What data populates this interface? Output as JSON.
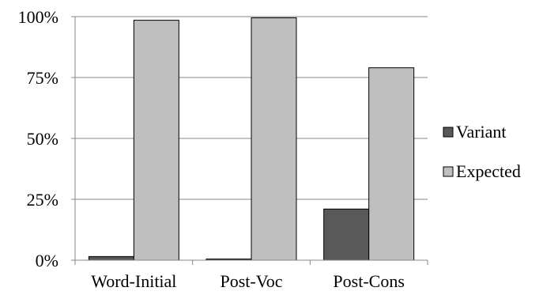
{
  "chart_data": {
    "type": "bar",
    "title": "",
    "xlabel": "",
    "ylabel": "",
    "categories": [
      "Word-Initial",
      "Post-Voc",
      "Post-Cons"
    ],
    "series": [
      {
        "name": "Variant",
        "values": [
          1.5,
          0.5,
          21
        ],
        "color": "#595959"
      },
      {
        "name": "Expected",
        "values": [
          98.5,
          99.5,
          79
        ],
        "color": "#bfbfbf"
      }
    ],
    "ylim": [
      0,
      100
    ],
    "yticks": [
      0,
      25,
      50,
      75,
      100
    ],
    "ytick_labels": [
      "0%",
      "25%",
      "50%",
      "75%",
      "100%"
    ],
    "grid": true,
    "legend_position": "right",
    "colors": {
      "bar_outline": "#000000",
      "gridline": "#878787",
      "axis": "#878787"
    }
  }
}
